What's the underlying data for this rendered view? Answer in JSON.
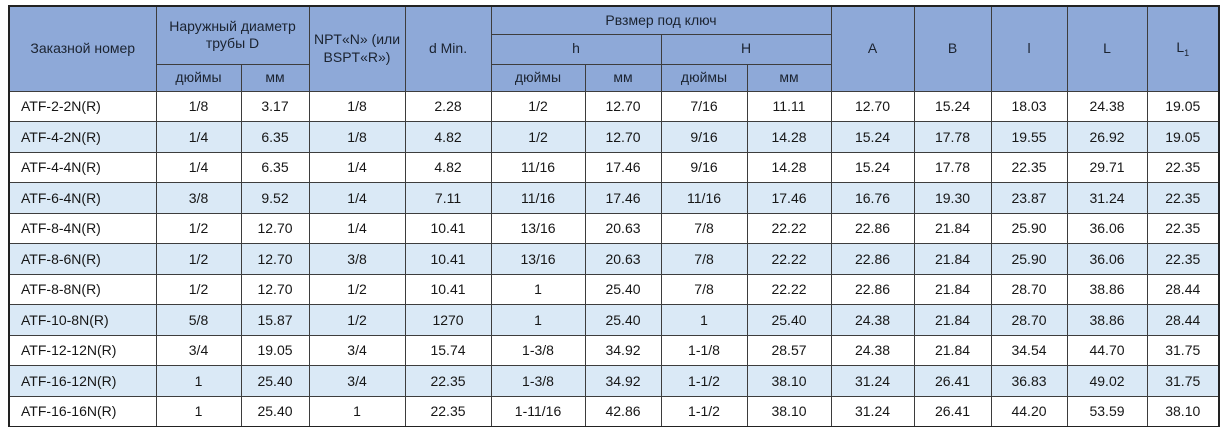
{
  "colors": {
    "header_bg": "#8EA9D8",
    "alt_row_bg": "#DAE9F6",
    "row_bg": "#FFFFFF",
    "border": "#3D3D3D",
    "text": "#161616"
  },
  "table": {
    "header": {
      "order_number": "Заказной номер",
      "outer_diameter_group": "Наружный диаметр трубы D",
      "npt": "NPT«N» (или BSPT«R»)",
      "d_min": "d Min.",
      "wrench_size_group": "Рвзмер под ключ",
      "h_group": "h",
      "H_group": "H",
      "inches_D": "дюймы",
      "mm_D": "мм",
      "inches_h": "дюймы",
      "mm_h": "мм",
      "inches_H": "дюймы",
      "mm_H": "мм",
      "col_A": "A",
      "col_B": "B",
      "col_l": "l",
      "col_L": "L",
      "col_L1_base": "L",
      "col_L1_sub": "1"
    },
    "rows": [
      [
        "ATF-2-2N(R)",
        "1/8",
        "3.17",
        "1/8",
        "2.28",
        "1/2",
        "12.70",
        "7/16",
        "11.11",
        "12.70",
        "15.24",
        "18.03",
        "24.38",
        "19.05"
      ],
      [
        "ATF-4-2N(R)",
        "1/4",
        "6.35",
        "1/8",
        "4.82",
        "1/2",
        "12.70",
        "9/16",
        "14.28",
        "15.24",
        "17.78",
        "19.55",
        "26.92",
        "19.05"
      ],
      [
        "ATF-4-4N(R)",
        "1/4",
        "6.35",
        "1/4",
        "4.82",
        "11/16",
        "17.46",
        "9/16",
        "14.28",
        "15.24",
        "17.78",
        "22.35",
        "29.71",
        "22.35"
      ],
      [
        "ATF-6-4N(R)",
        "3/8",
        "9.52",
        "1/4",
        "7.11",
        "11/16",
        "17.46",
        "11/16",
        "17.46",
        "16.76",
        "19.30",
        "23.87",
        "31.24",
        "22.35"
      ],
      [
        "ATF-8-4N(R)",
        "1/2",
        "12.70",
        "1/4",
        "10.41",
        "13/16",
        "20.63",
        "7/8",
        "22.22",
        "22.86",
        "21.84",
        "25.90",
        "36.06",
        "22.35"
      ],
      [
        "ATF-8-6N(R)",
        "1/2",
        "12.70",
        "3/8",
        "10.41",
        "13/16",
        "20.63",
        "7/8",
        "22.22",
        "22.86",
        "21.84",
        "25.90",
        "36.06",
        "22.35"
      ],
      [
        "ATF-8-8N(R)",
        "1/2",
        "12.70",
        "1/2",
        "10.41",
        "1",
        "25.40",
        "7/8",
        "22.22",
        "22.86",
        "21.84",
        "28.70",
        "38.86",
        "28.44"
      ],
      [
        "ATF-10-8N(R)",
        "5/8",
        "15.87",
        "1/2",
        "1270",
        "1",
        "25.40",
        "1",
        "25.40",
        "24.38",
        "21.84",
        "28.70",
        "38.86",
        "28.44"
      ],
      [
        "ATF-12-12N(R)",
        "3/4",
        "19.05",
        "3/4",
        "15.74",
        "1-3/8",
        "34.92",
        "1-1/8",
        "28.57",
        "24.38",
        "21.84",
        "34.54",
        "44.70",
        "31.75"
      ],
      [
        "ATF-16-12N(R)",
        "1",
        "25.40",
        "3/4",
        "22.35",
        "1-3/8",
        "34.92",
        "1-1/2",
        "38.10",
        "31.24",
        "26.41",
        "36.83",
        "49.02",
        "31.75"
      ],
      [
        "ATF-16-16N(R)",
        "1",
        "25.40",
        "1",
        "22.35",
        "1-11/16",
        "42.86",
        "1-1/2",
        "38.10",
        "31.24",
        "26.41",
        "44.20",
        "53.59",
        "38.10"
      ]
    ]
  }
}
